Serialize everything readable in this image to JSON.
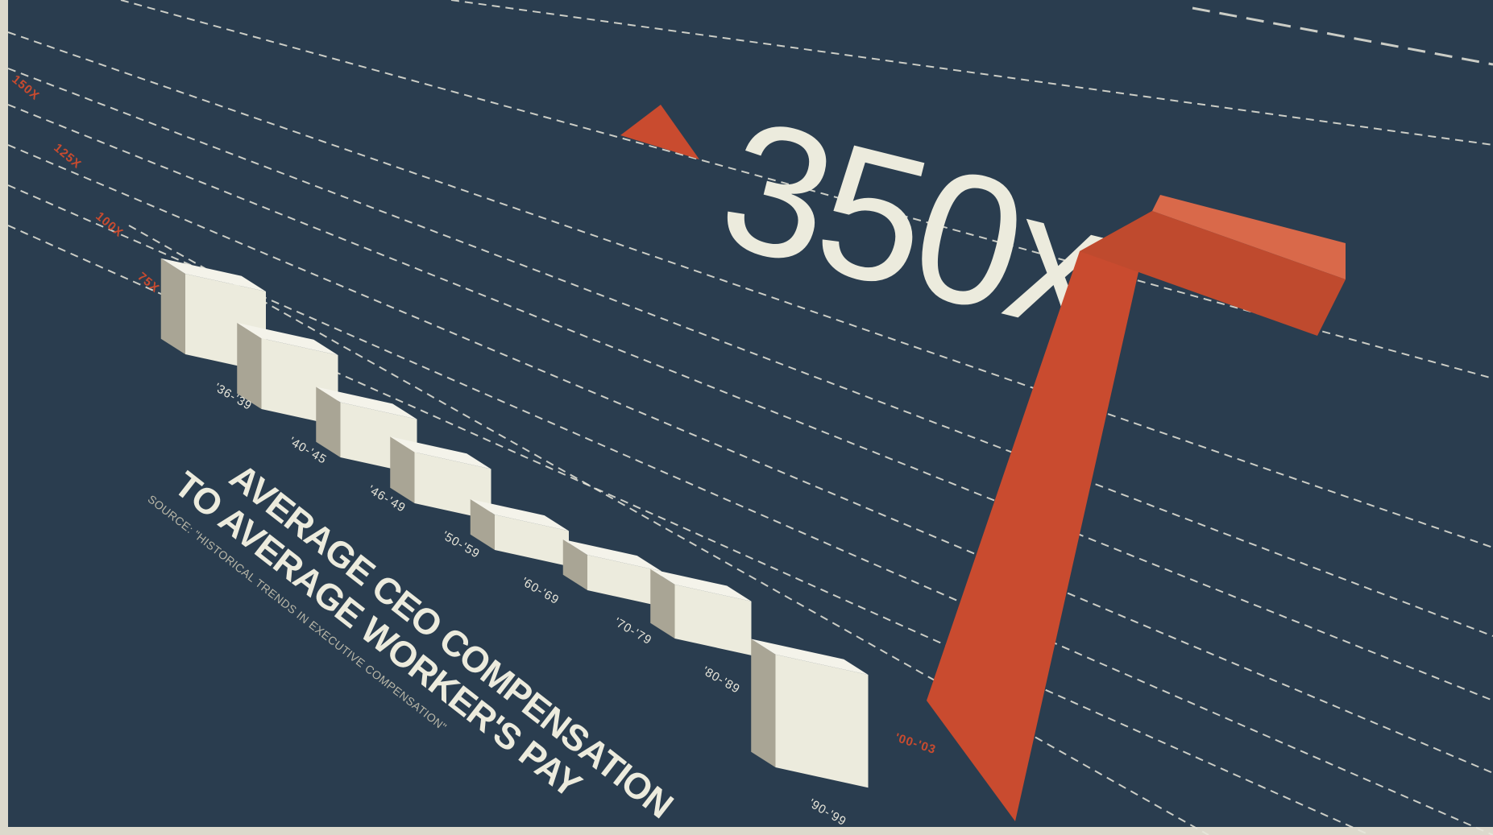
{
  "chart_data": {
    "type": "bar",
    "title": "AVERAGE CEO COMPENSATION TO AVERAGE WORKER'S PAY",
    "title_lines": [
      "AVERAGE CEO COMPENSATION",
      "TO AVERAGE WORKER'S PAY"
    ],
    "source": "SOURCE: \"HISTORICAL TRENDS IN EXECUTIVE COMPENSATION\"",
    "headline": "350x",
    "categories": [
      "'36-'39",
      "'40-'45",
      "'46-'49",
      "'50-'59",
      "'60-'69",
      "'70-'79",
      "'80-'89",
      "'90-'99",
      "'00-'03"
    ],
    "values": [
      82,
      72,
      56,
      52,
      36,
      36,
      55,
      115,
      350
    ],
    "y_ticks": [
      "150X",
      "125X",
      "100X",
      "75X"
    ],
    "grid": true,
    "highlight_index": 8,
    "colors": {
      "background": "#2a3d4f",
      "bar": "#ecebdd",
      "bar_side": "#a9a595",
      "highlight": "#c94b2f",
      "highlight_top": "#d9694a",
      "frame": "#dcd9cc"
    }
  }
}
